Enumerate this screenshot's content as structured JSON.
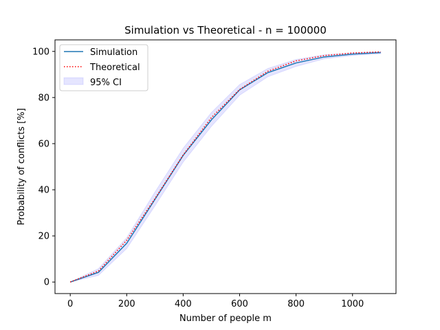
{
  "chart_data": {
    "type": "line",
    "title": "Simulation vs Theoretical - n = 100000",
    "xlabel": "Number of people m",
    "ylabel": "Probability of conflicts [%]",
    "xlim": [
      -54,
      1154
    ],
    "ylim": [
      -5,
      105
    ],
    "xticks": [
      0,
      200,
      400,
      600,
      800,
      1000
    ],
    "yticks": [
      0,
      20,
      40,
      60,
      80,
      100
    ],
    "grid": false,
    "legend_position": "upper-left",
    "series": [
      {
        "name": "Simulation",
        "color": "#1f77b4",
        "style": "solid",
        "x": [
          0,
          100,
          200,
          300,
          400,
          500,
          600,
          700,
          800,
          900,
          1000,
          1100
        ],
        "y": [
          0,
          4.2,
          16.8,
          35.8,
          54.9,
          70.3,
          83.3,
          90.8,
          95.0,
          97.6,
          98.8,
          99.5
        ]
      },
      {
        "name": "Theoretical",
        "color": "#ff0000",
        "style": "dotted",
        "x": [
          0,
          100,
          200,
          300,
          400,
          500,
          600,
          700,
          800,
          900,
          1000,
          1100
        ],
        "y": [
          0,
          4.8,
          18.1,
          36.2,
          55.1,
          71.3,
          83.5,
          91.4,
          95.9,
          98.2,
          99.3,
          99.8
        ]
      }
    ],
    "ci": {
      "name": "95% CI",
      "color": "#0000ff",
      "opacity": 0.1,
      "x": [
        0,
        100,
        200,
        300,
        400,
        500,
        600,
        700,
        800,
        900,
        1000,
        1100
      ],
      "lower": [
        0,
        2.9,
        14.5,
        33.0,
        52.0,
        67.5,
        81.0,
        89.0,
        93.5,
        96.8,
        98.2,
        99.0
      ],
      "upper": [
        0,
        5.8,
        19.2,
        39.0,
        58.0,
        73.5,
        85.6,
        92.6,
        96.5,
        98.5,
        99.4,
        99.9
      ]
    }
  }
}
